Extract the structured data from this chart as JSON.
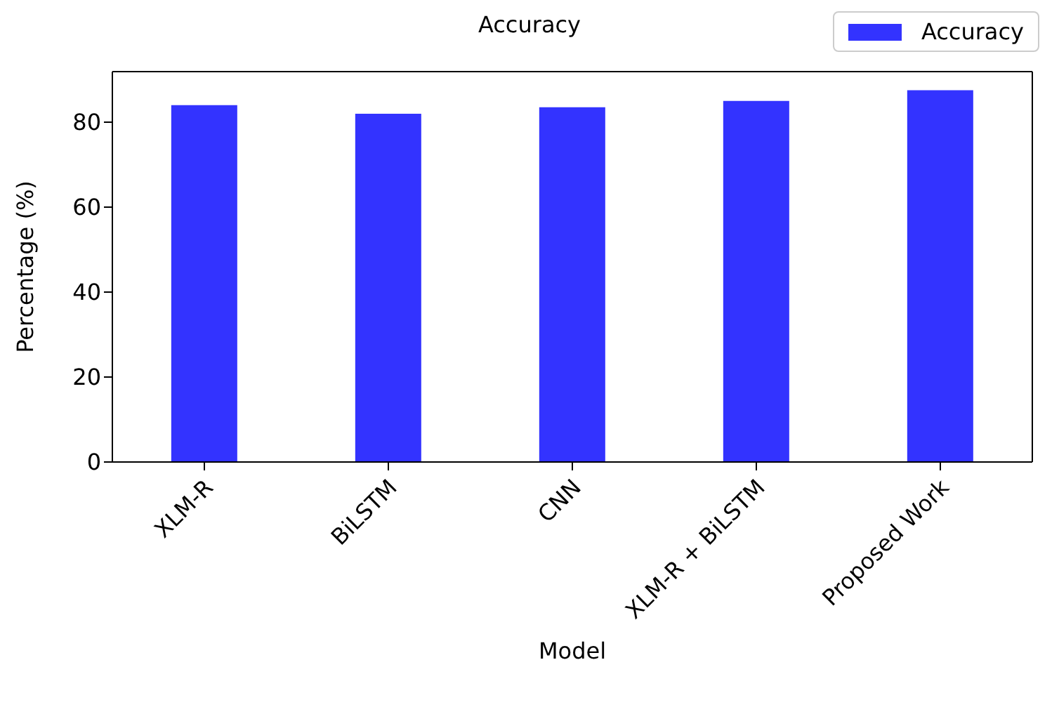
{
  "chart_data": {
    "type": "bar",
    "title": "Accuracy",
    "xlabel": "Model",
    "ylabel": "Percentage (%)",
    "categories": [
      "XLM-R",
      "BiLSTM",
      "CNN",
      "XLM-R + BiLSTM",
      "Proposed Work"
    ],
    "series": [
      {
        "name": "Accuracy",
        "color": "#3333ff",
        "values": [
          84,
          82,
          83.5,
          85,
          87.5
        ]
      }
    ],
    "ylim": [
      0,
      91.9
    ],
    "yticks": [
      0,
      20,
      40,
      60,
      80
    ],
    "grid": false,
    "legend": "top right"
  }
}
